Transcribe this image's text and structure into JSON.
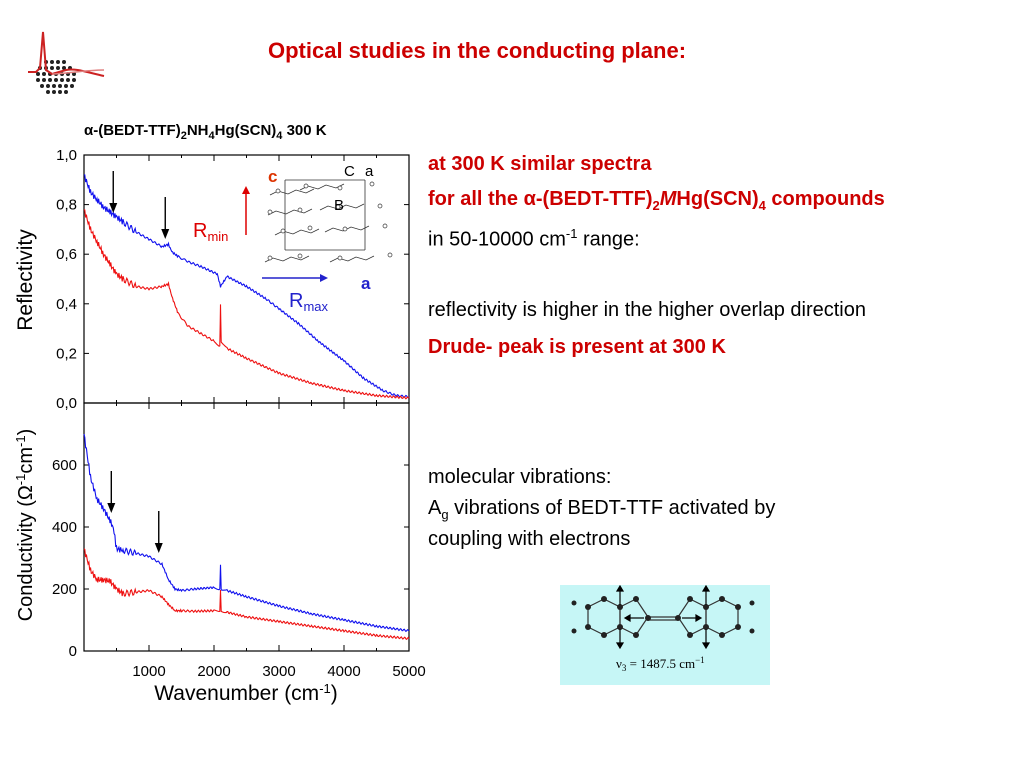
{
  "slide": {
    "title": "Optical studies in the conducting plane:"
  },
  "chart_data": [
    {
      "type": "line",
      "title": "α-(BEDT-TTF)2NH4Hg(SCN)4  300 K",
      "xlabel": "",
      "ylabel": "Reflectivity",
      "xlim": [
        0,
        5000
      ],
      "ylim": [
        0,
        1.0
      ],
      "yticks": [
        "0,0",
        "0,2",
        "0,4",
        "0,6",
        "0,8",
        "1,0"
      ],
      "series": [
        {
          "name": "Rmax",
          "color": "#1010ee",
          "x": [
            0,
            100,
            200,
            300,
            400,
            500,
            600,
            800,
            1000,
            1200,
            1300,
            1350,
            1450,
            1600,
            1800,
            2050,
            2100,
            2200,
            2500,
            2800,
            3000,
            3300,
            3600,
            4000,
            4300,
            4600,
            4800,
            5000
          ],
          "y": [
            0.92,
            0.85,
            0.82,
            0.79,
            0.77,
            0.75,
            0.73,
            0.69,
            0.66,
            0.63,
            0.64,
            0.61,
            0.59,
            0.57,
            0.55,
            0.52,
            0.47,
            0.51,
            0.47,
            0.42,
            0.38,
            0.32,
            0.25,
            0.17,
            0.1,
            0.05,
            0.03,
            0.025
          ]
        },
        {
          "name": "Rmin",
          "color": "#ee1010",
          "x": [
            0,
            100,
            200,
            300,
            400,
            500,
            600,
            800,
            1000,
            1200,
            1300,
            1350,
            1450,
            1600,
            1800,
            2000,
            2090,
            2100,
            2110,
            2200,
            2500,
            3000,
            3500,
            4000,
            4500,
            5000
          ],
          "y": [
            0.78,
            0.7,
            0.65,
            0.6,
            0.56,
            0.52,
            0.5,
            0.47,
            0.46,
            0.47,
            0.48,
            0.43,
            0.36,
            0.31,
            0.28,
            0.25,
            0.23,
            0.4,
            0.25,
            0.22,
            0.18,
            0.12,
            0.08,
            0.05,
            0.03,
            0.02
          ]
        }
      ],
      "annotations": [
        "c",
        "a",
        "Rmin",
        "Rmax"
      ],
      "arrows_x": [
        450,
        1250
      ]
    },
    {
      "type": "line",
      "xlabel": "Wavenumber (cm-1)",
      "ylabel": "Conductivity (Ω-1cm-1)",
      "xlim": [
        0,
        5000
      ],
      "ylim": [
        0,
        800
      ],
      "xticks": [
        "1000",
        "2000",
        "3000",
        "4000",
        "5000"
      ],
      "yticks": [
        "0",
        "200",
        "400",
        "600"
      ],
      "series": [
        {
          "name": "Rmax",
          "color": "#1010ee",
          "x": [
            0,
            100,
            200,
            300,
            400,
            450,
            500,
            600,
            800,
            1000,
            1200,
            1300,
            1400,
            1500,
            1700,
            2000,
            2090,
            2100,
            2110,
            2200,
            2500,
            3000,
            3500,
            4000,
            4500,
            5000
          ],
          "y": [
            700,
            560,
            490,
            460,
            420,
            400,
            330,
            325,
            315,
            305,
            280,
            230,
            200,
            195,
            200,
            205,
            200,
            280,
            200,
            195,
            175,
            145,
            120,
            100,
            80,
            65
          ]
        },
        {
          "name": "Rmin",
          "color": "#ee1010",
          "x": [
            0,
            100,
            200,
            300,
            400,
            500,
            600,
            800,
            1000,
            1200,
            1300,
            1400,
            1500,
            1700,
            2000,
            2090,
            2100,
            2110,
            2200,
            2500,
            3000,
            3500,
            4000,
            4500,
            5000
          ],
          "y": [
            330,
            260,
            230,
            230,
            225,
            200,
            185,
            190,
            195,
            175,
            150,
            130,
            130,
            128,
            130,
            130,
            200,
            130,
            125,
            110,
            95,
            80,
            65,
            50,
            40
          ]
        }
      ],
      "arrows_x": [
        420,
        1150
      ]
    }
  ],
  "bullets": {
    "b1": "at 300 K similar spectra",
    "b2_pre": "for all the ",
    "b2_alpha": "α",
    "b2_mid": "-(BEDT-TTF)",
    "b2_sub": "2",
    "b2_m": "M",
    "b2_hg": "Hg(SCN)",
    "b2_sub4": "4",
    "b2_post": " compounds",
    "b3_pre": "in 50-10000 cm",
    "b3_sup": "-1",
    "b3_post": " range:",
    "b4": "reflectivity is higher in the higher overlap direction",
    "b5": "Drude- peak is present at 300 K",
    "b6": "molecular vibrations:",
    "b7_pre": "A",
    "b7_sub": "g",
    "b7_post": " vibrations of BEDT-TTF activated by",
    "b8": "coupling with electrons"
  },
  "molecule": {
    "caption_nu": "ν",
    "caption_sub": "3",
    "caption_post": " = 1487.5 cm",
    "caption_sup": "−1"
  }
}
